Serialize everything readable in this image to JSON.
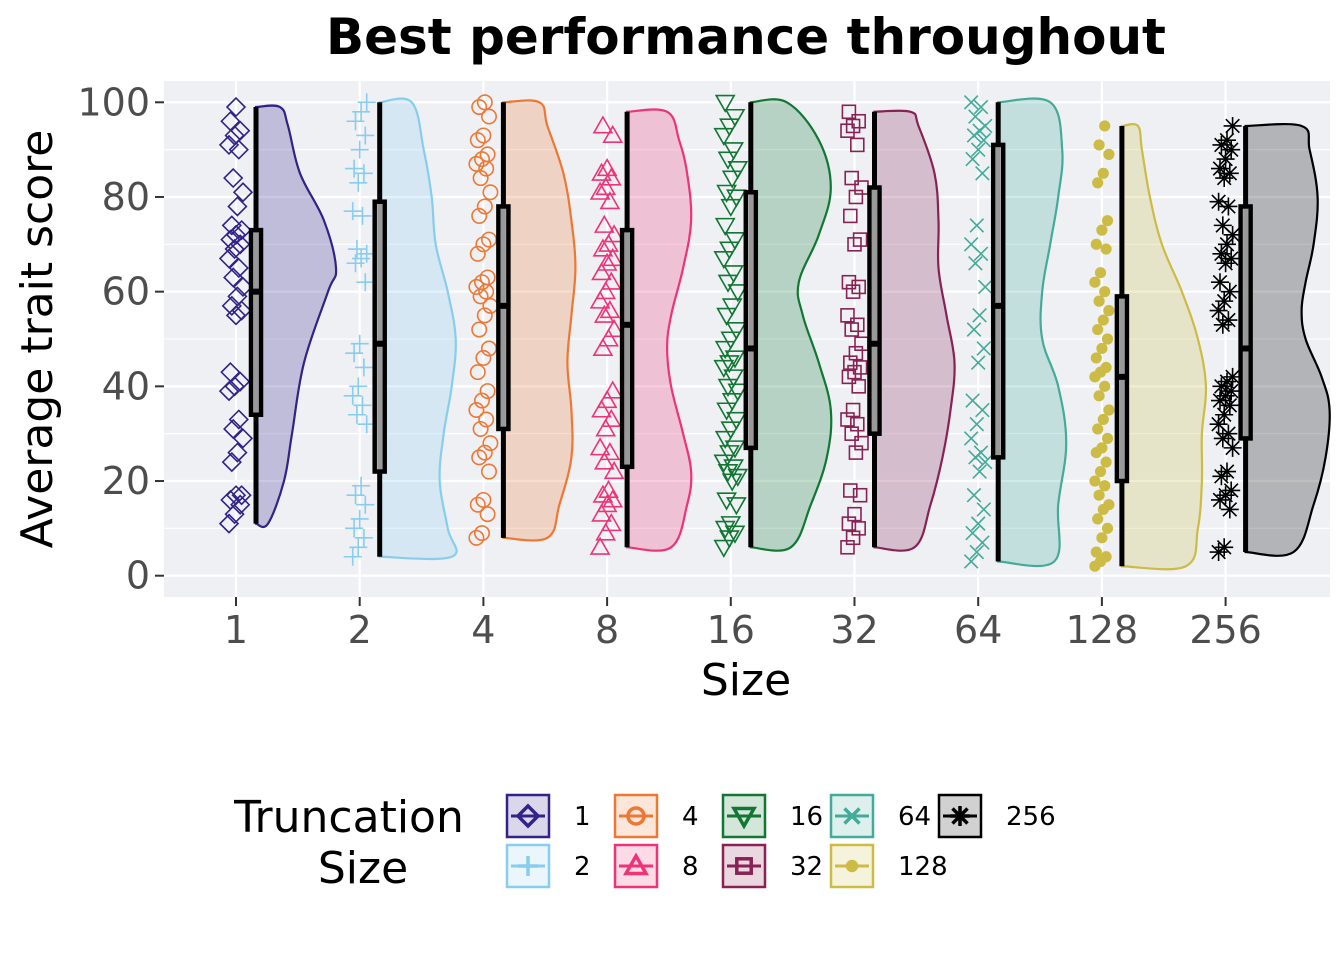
{
  "chart_data": {
    "type": "raincloud",
    "title": "Best performance throughout",
    "xlabel": "Size",
    "ylabel": "Average trait score",
    "ylim": [
      -4.5,
      104.5
    ],
    "yticks": [
      0,
      20,
      40,
      60,
      80,
      100
    ],
    "grid": true,
    "legend": {
      "title": "Truncation\nSize",
      "position": "bottom"
    },
    "categories": [
      "1",
      "2",
      "4",
      "8",
      "16",
      "32",
      "64",
      "128",
      "256"
    ],
    "series": [
      {
        "name": "1",
        "color": "#332288",
        "marker": "diamond",
        "median": 60,
        "q1": 34,
        "q3": 73,
        "min": 11,
        "max": 99,
        "density": [
          [
            11,
            0.15
          ],
          [
            20,
            0.35
          ],
          [
            30,
            0.45
          ],
          [
            45,
            0.6
          ],
          [
            60,
            0.9
          ],
          [
            65,
            1.0
          ],
          [
            75,
            0.85
          ],
          [
            85,
            0.55
          ],
          [
            95,
            0.4
          ],
          [
            99,
            0.3
          ]
        ],
        "points": [
          11,
          13,
          15,
          16,
          17,
          17,
          24,
          26,
          29,
          31,
          33,
          39,
          40,
          41,
          43,
          55,
          56,
          57,
          59,
          61,
          63,
          65,
          67,
          69,
          70,
          71,
          72,
          73,
          74,
          78,
          81,
          84,
          90,
          91,
          93,
          94,
          96,
          99
        ]
      },
      {
        "name": "2",
        "color": "#88CCEE",
        "marker": "plus",
        "median": 49,
        "q1": 22,
        "q3": 79,
        "min": 4,
        "max": 100,
        "density": [
          [
            4,
            0.9
          ],
          [
            10,
            0.85
          ],
          [
            20,
            0.75
          ],
          [
            30,
            0.8
          ],
          [
            40,
            0.9
          ],
          [
            50,
            0.95
          ],
          [
            60,
            0.85
          ],
          [
            70,
            0.7
          ],
          [
            80,
            0.65
          ],
          [
            90,
            0.55
          ],
          [
            100,
            0.4
          ]
        ],
        "points": [
          4,
          6,
          8,
          10,
          12,
          15,
          17,
          19,
          32,
          34,
          36,
          38,
          40,
          44,
          47,
          49,
          62,
          66,
          67,
          68,
          69,
          76,
          77,
          83,
          85,
          86,
          90,
          93,
          96,
          98,
          100
        ]
      },
      {
        "name": "4",
        "color": "#EE7733",
        "marker": "circle",
        "median": 57,
        "q1": 31,
        "q3": 78,
        "min": 8,
        "max": 100,
        "density": [
          [
            8,
            0.55
          ],
          [
            15,
            0.7
          ],
          [
            25,
            0.85
          ],
          [
            35,
            0.85
          ],
          [
            45,
            0.8
          ],
          [
            55,
            0.85
          ],
          [
            65,
            0.9
          ],
          [
            75,
            0.85
          ],
          [
            85,
            0.75
          ],
          [
            95,
            0.55
          ],
          [
            100,
            0.45
          ]
        ],
        "points": [
          8,
          9,
          13,
          15,
          16,
          22,
          25,
          26,
          28,
          31,
          33,
          35,
          37,
          39,
          43,
          46,
          48,
          52,
          55,
          57,
          59,
          60,
          61,
          62,
          63,
          68,
          70,
          71,
          76,
          78,
          81,
          84,
          86,
          87,
          88,
          89,
          92,
          93,
          97,
          99,
          100
        ]
      },
      {
        "name": "8",
        "color": "#EE3377",
        "marker": "triangle",
        "median": 53,
        "q1": 23,
        "q3": 73,
        "min": 6,
        "max": 98,
        "density": [
          [
            6,
            0.55
          ],
          [
            15,
            0.75
          ],
          [
            22,
            0.8
          ],
          [
            30,
            0.7
          ],
          [
            40,
            0.55
          ],
          [
            48,
            0.5
          ],
          [
            55,
            0.55
          ],
          [
            65,
            0.7
          ],
          [
            75,
            0.8
          ],
          [
            85,
            0.75
          ],
          [
            92,
            0.65
          ],
          [
            98,
            0.5
          ]
        ],
        "points": [
          6,
          9,
          11,
          13,
          15,
          16,
          17,
          18,
          22,
          24,
          26,
          27,
          31,
          33,
          35,
          37,
          39,
          48,
          50,
          52,
          55,
          56,
          58,
          60,
          62,
          64,
          66,
          67,
          69,
          70,
          72,
          74,
          79,
          81,
          82,
          84,
          85,
          86,
          93,
          95
        ]
      },
      {
        "name": "16",
        "color": "#117733",
        "marker": "triangle-down",
        "median": 48,
        "q1": 27,
        "q3": 81,
        "min": 6,
        "max": 100,
        "density": [
          [
            6,
            0.5
          ],
          [
            15,
            0.75
          ],
          [
            25,
            0.95
          ],
          [
            35,
            1.0
          ],
          [
            45,
            0.85
          ],
          [
            55,
            0.65
          ],
          [
            62,
            0.6
          ],
          [
            72,
            0.85
          ],
          [
            82,
            1.0
          ],
          [
            92,
            0.85
          ],
          [
            100,
            0.45
          ]
        ],
        "points": [
          6,
          8,
          9,
          10,
          11,
          15,
          16,
          20,
          21,
          22,
          23,
          24,
          26,
          27,
          29,
          31,
          33,
          35,
          37,
          39,
          40,
          42,
          44,
          45,
          46,
          48,
          50,
          52,
          55,
          57,
          60,
          62,
          64,
          67,
          69,
          71,
          74,
          78,
          80,
          81,
          84,
          86,
          88,
          90,
          93,
          95,
          97,
          100
        ]
      },
      {
        "name": "32",
        "color": "#882255",
        "marker": "square",
        "median": 49,
        "q1": 30,
        "q3": 82,
        "min": 6,
        "max": 98,
        "density": [
          [
            6,
            0.5
          ],
          [
            15,
            0.7
          ],
          [
            25,
            0.85
          ],
          [
            35,
            0.95
          ],
          [
            45,
            1.0
          ],
          [
            55,
            0.9
          ],
          [
            65,
            0.8
          ],
          [
            75,
            0.8
          ],
          [
            85,
            0.75
          ],
          [
            95,
            0.55
          ],
          [
            98,
            0.45
          ]
        ],
        "points": [
          6,
          8,
          10,
          11,
          13,
          17,
          18,
          26,
          28,
          30,
          32,
          33,
          35,
          40,
          42,
          43,
          44,
          45,
          47,
          49,
          52,
          53,
          55,
          60,
          61,
          62,
          70,
          71,
          76,
          80,
          82,
          84,
          91,
          94,
          95,
          96,
          98
        ]
      },
      {
        "name": "64",
        "color": "#44AA99",
        "marker": "x",
        "median": 57,
        "q1": 25,
        "q3": 91,
        "min": 3,
        "max": 100,
        "density": [
          [
            3,
            0.7
          ],
          [
            15,
            0.75
          ],
          [
            28,
            0.85
          ],
          [
            40,
            0.75
          ],
          [
            50,
            0.55
          ],
          [
            60,
            0.55
          ],
          [
            70,
            0.65
          ],
          [
            80,
            0.75
          ],
          [
            90,
            0.8
          ],
          [
            100,
            0.65
          ]
        ],
        "points": [
          3,
          5,
          7,
          9,
          11,
          14,
          17,
          22,
          24,
          25,
          26,
          29,
          32,
          35,
          37,
          45,
          48,
          52,
          55,
          61,
          66,
          68,
          70,
          74,
          85,
          88,
          90,
          92,
          93,
          94,
          95,
          97,
          99,
          100
        ]
      },
      {
        "name": "128",
        "color": "#CCBB44",
        "marker": "dot",
        "median": 42,
        "q1": 20,
        "q3": 59,
        "min": 2,
        "max": 95,
        "density": [
          [
            2,
            0.8
          ],
          [
            10,
            0.95
          ],
          [
            20,
            1.0
          ],
          [
            30,
            1.0
          ],
          [
            40,
            1.05
          ],
          [
            50,
            0.95
          ],
          [
            60,
            0.75
          ],
          [
            70,
            0.5
          ],
          [
            80,
            0.35
          ],
          [
            90,
            0.25
          ],
          [
            95,
            0.2
          ]
        ],
        "points": [
          2,
          3,
          4,
          5,
          8,
          10,
          12,
          14,
          15,
          17,
          19,
          20,
          22,
          24,
          26,
          27,
          29,
          31,
          33,
          35,
          38,
          40,
          42,
          43,
          44,
          46,
          48,
          50,
          52,
          54,
          56,
          58,
          60,
          62,
          64,
          69,
          70,
          73,
          75,
          83,
          85,
          89,
          91,
          95
        ]
      },
      {
        "name": "256",
        "color": "#000000",
        "marker": "asterisk",
        "median": 48,
        "q1": 29,
        "q3": 78,
        "min": 5,
        "max": 95,
        "density": [
          [
            5,
            0.6
          ],
          [
            15,
            0.85
          ],
          [
            25,
            1.0
          ],
          [
            35,
            1.05
          ],
          [
            42,
            0.95
          ],
          [
            50,
            0.75
          ],
          [
            56,
            0.7
          ],
          [
            62,
            0.75
          ],
          [
            70,
            0.85
          ],
          [
            80,
            0.9
          ],
          [
            90,
            0.8
          ],
          [
            95,
            0.7
          ]
        ],
        "points": [
          5,
          6,
          14,
          16,
          17,
          18,
          21,
          22,
          27,
          29,
          30,
          32,
          34,
          36,
          37,
          38,
          39,
          40,
          41,
          42,
          53,
          54,
          56,
          58,
          60,
          62,
          66,
          67,
          68,
          70,
          72,
          74,
          78,
          79,
          84,
          85,
          86,
          88,
          90,
          91,
          92,
          95
        ]
      }
    ]
  }
}
